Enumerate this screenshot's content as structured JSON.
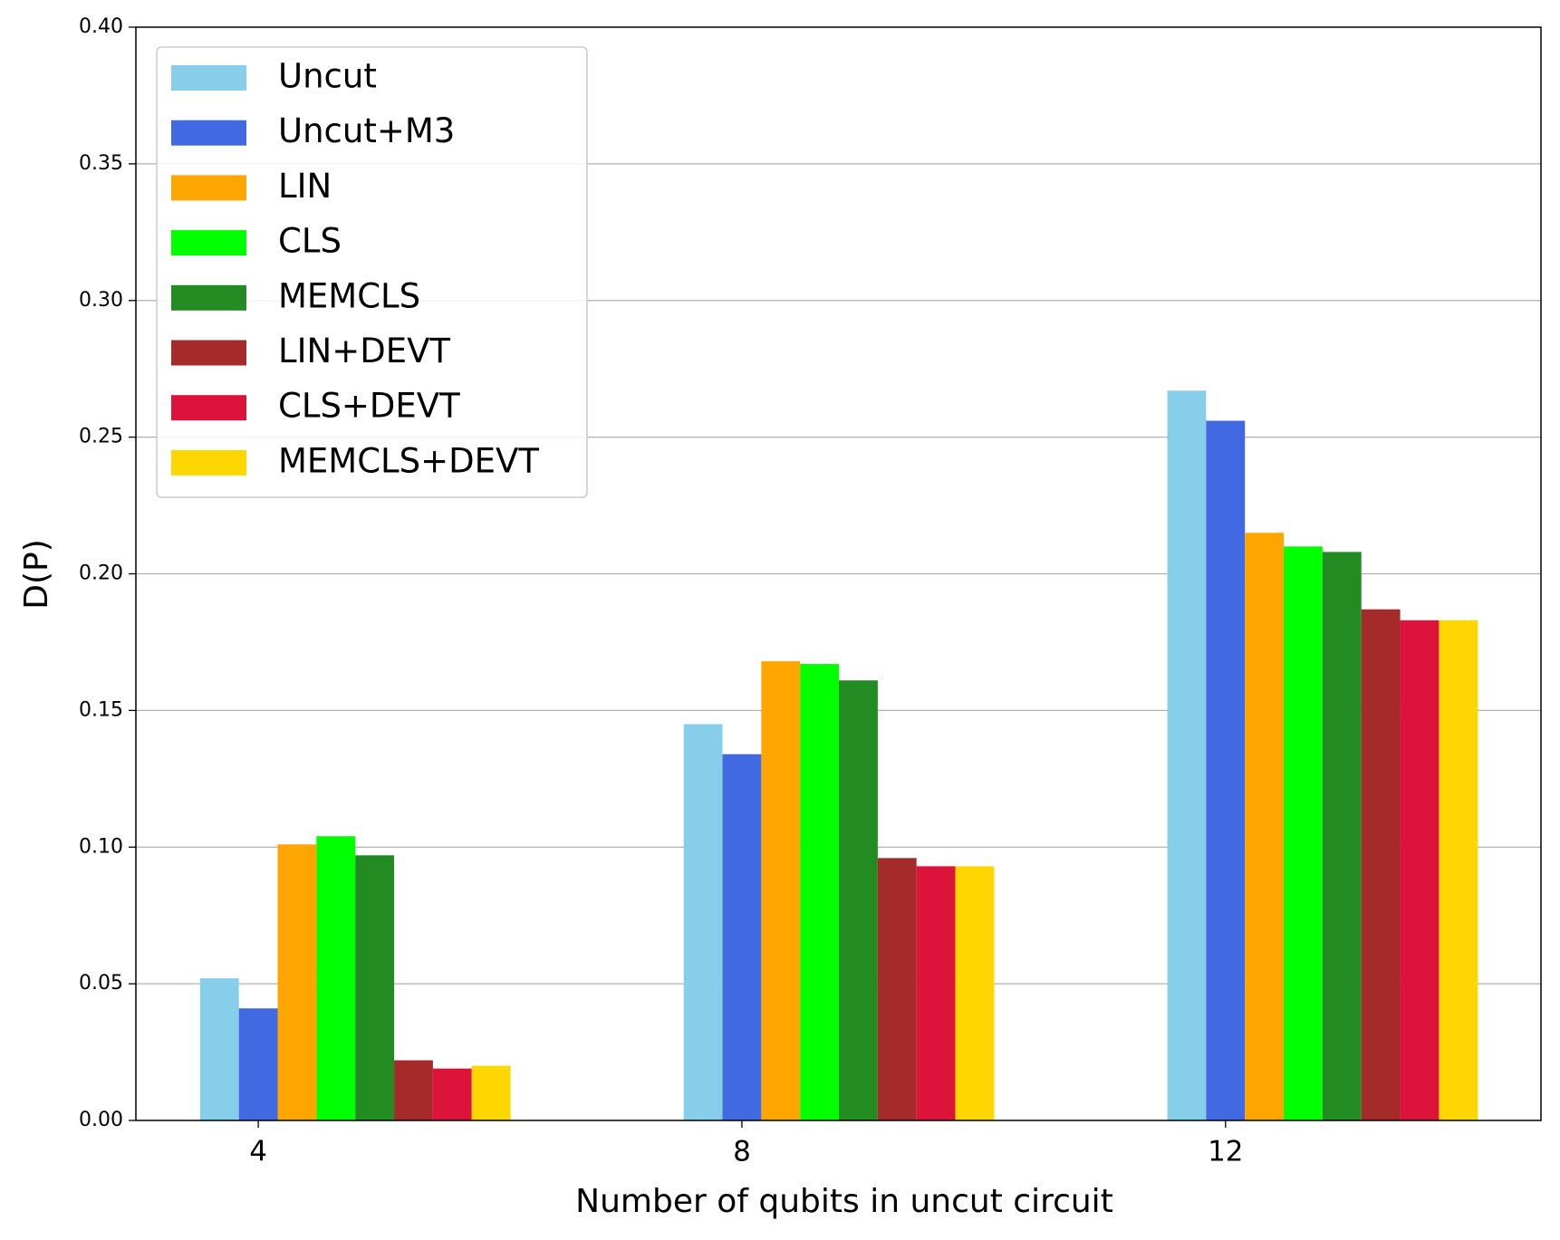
{
  "chart_data": {
    "type": "bar",
    "x_label": "Number of qubits in uncut circuit",
    "y_label": "D(P)",
    "categories": [
      "4",
      "8",
      "12"
    ],
    "series": [
      {
        "name": "Uncut",
        "color": "#87ceeb",
        "values": [
          0.052,
          0.145,
          0.267
        ]
      },
      {
        "name": "Uncut+M3",
        "color": "#4169e1",
        "values": [
          0.041,
          0.134,
          0.256
        ]
      },
      {
        "name": "LIN",
        "color": "#ffa500",
        "values": [
          0.101,
          0.168,
          0.215
        ]
      },
      {
        "name": "CLS",
        "color": "#00ff00",
        "values": [
          0.104,
          0.167,
          0.21
        ]
      },
      {
        "name": "MEMCLS",
        "color": "#228b22",
        "values": [
          0.097,
          0.161,
          0.208
        ]
      },
      {
        "name": "LIN+DEVT",
        "color": "#a52a2a",
        "values": [
          0.022,
          0.096,
          0.187
        ]
      },
      {
        "name": "CLS+DEVT",
        "color": "#dc143c",
        "values": [
          0.019,
          0.093,
          0.183
        ]
      },
      {
        "name": "MEMCLS+DEVT",
        "color": "#ffd700",
        "values": [
          0.02,
          0.093,
          0.183
        ]
      }
    ],
    "ylim": [
      0,
      0.4
    ],
    "yticks": [
      {
        "value": 0,
        "label": "0.00"
      },
      0.05,
      {
        "value": 0.1,
        "label": "0.10"
      },
      0.15,
      {
        "value": 0.2,
        "label": "0.20"
      },
      0.25,
      {
        "value": 0.3,
        "label": "0.30"
      },
      0.35,
      {
        "value": 0.4,
        "label": "0.40"
      }
    ],
    "grid": true,
    "legend": "upper-left"
  }
}
